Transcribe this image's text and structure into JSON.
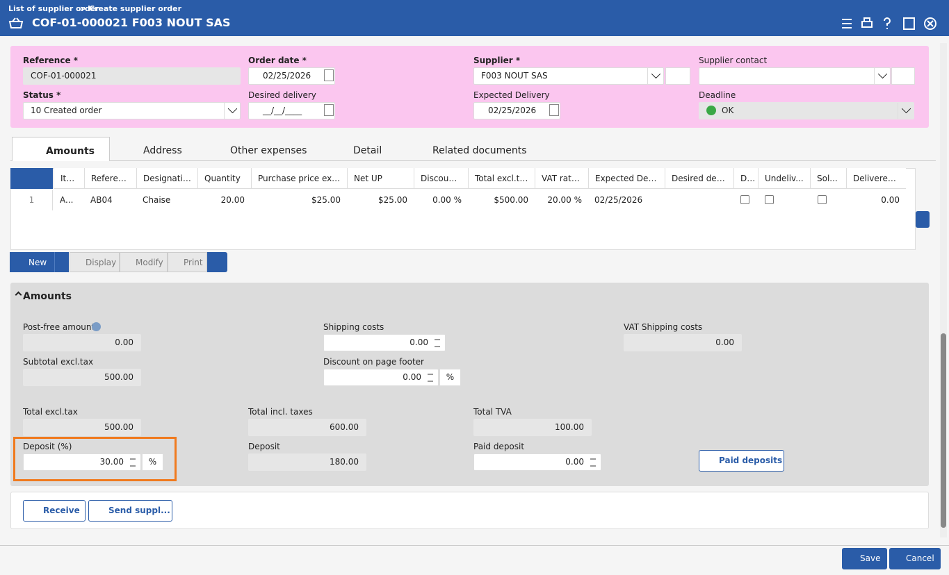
{
  "header": {
    "breadcrumb": [
      "List of supplier order",
      "Create supplier order"
    ],
    "separator": ">",
    "title": "COF-01-000021 F003 NOUT SAS"
  },
  "form": {
    "fields": [
      {
        "label": "Reference *",
        "value": "COF-01-000021"
      },
      {
        "label": "Order date *",
        "value": "02/25/2026"
      },
      {
        "label": "Supplier *",
        "value": "F003 NOUT SAS"
      },
      {
        "label": "Supplier contact"
      },
      {
        "label": "Status *",
        "value": "10 Created order"
      },
      {
        "label": "Desired delivery",
        "value": "__/__/____"
      },
      {
        "label": "Expected Delivery",
        "value": "02/25/2026"
      },
      {
        "label": "Deadline",
        "value": "OK"
      }
    ]
  },
  "tabs": [
    "Amounts",
    "Address",
    "Other expenses",
    "Detail",
    "Related documents"
  ],
  "table": {
    "columns": [
      "Item",
      "Reference",
      "Designation",
      "Quantity",
      "Purchase price excl....",
      "Net UP",
      "Discount...",
      "Total excl.tax",
      "VAT rate ...",
      "Expected Deliv...",
      "Desired deli...",
      "DR",
      "Undeliv...",
      "Sol...",
      "Delivered ..."
    ],
    "rows": [
      [
        "1",
        "A...",
        "AB04",
        "Chaise",
        "20.00",
        "$25.00",
        "$25.00",
        "0.00 %",
        "$500.00",
        "20.00 %",
        "02/25/2026",
        null,
        null,
        null,
        null,
        "0.00"
      ]
    ]
  },
  "toolbar": [
    "New",
    "Display",
    "Modify",
    "Print"
  ],
  "amounts": {
    "title": "Amounts",
    "fields": [
      {
        "label": "Post-free amount",
        "value": "0.00"
      },
      {
        "label": "Shipping costs",
        "value": "0.00"
      },
      {
        "label": "VAT Shipping costs",
        "value": "0.00"
      },
      {
        "label": "Subtotal excl.tax",
        "value": "500.00"
      },
      {
        "label": "Discount on page footer",
        "value": "0.00",
        "unit": "%"
      },
      {
        "label": "Total excl.tax",
        "value": "500.00"
      },
      {
        "label": "Total incl. taxes",
        "value": "600.00"
      },
      {
        "label": "Total TVA",
        "value": "100.00"
      },
      {
        "label": "Deposit (%)",
        "value": "30.00",
        "unit": "%"
      },
      {
        "label": "Deposit",
        "value": "180.00"
      },
      {
        "label": "Paid deposit",
        "value": "0.00"
      }
    ],
    "button": "Paid deposits"
  },
  "actions": [
    "Receive",
    "Send suppl..."
  ],
  "footer": [
    "Save",
    "Cancel"
  ]
}
